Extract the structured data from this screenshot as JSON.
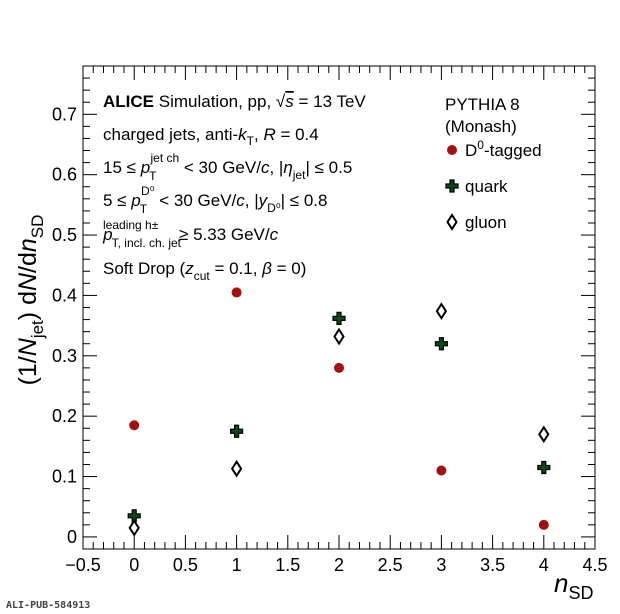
{
  "chart_data": {
    "type": "scatter",
    "x_range": [
      -0.5,
      4.5
    ],
    "y_range": [
      -0.02,
      0.78
    ],
    "x_ticks": [
      "−0.5",
      "0",
      "0.5",
      "1",
      "1.5",
      "2",
      "2.5",
      "3",
      "3.5",
      "4",
      "4.5"
    ],
    "y_ticks": [
      "0",
      "0.1",
      "0.2",
      "0.3",
      "0.4",
      "0.5",
      "0.6",
      "0.7"
    ],
    "x_tick_values": [
      -0.5,
      0,
      0.5,
      1,
      1.5,
      2,
      2.5,
      3,
      3.5,
      4,
      4.5
    ],
    "y_tick_values": [
      0,
      0.1,
      0.2,
      0.3,
      0.4,
      0.5,
      0.6,
      0.7
    ],
    "xlabel": {
      "main": "n",
      "sub": "SD"
    },
    "ylabel": {
      "a": "(1/",
      "n": "N",
      "jet": "jet",
      "b": ") d",
      "N": "N",
      "c": "/d",
      "n2": "n",
      "sd": "SD"
    },
    "series": [
      {
        "name": "D⁰-tagged",
        "marker": "circle",
        "color": "#a50f0f",
        "x": [
          0,
          1,
          2,
          3,
          4
        ],
        "y": [
          0.185,
          0.405,
          0.28,
          0.11,
          0.02
        ]
      },
      {
        "name": "quark",
        "marker": "cross",
        "color": "#0a4a14",
        "x": [
          0,
          1,
          2,
          3,
          4
        ],
        "y": [
          0.035,
          0.175,
          0.362,
          0.32,
          0.115
        ]
      },
      {
        "name": "gluon",
        "marker": "diamond",
        "color": "#000000",
        "x": [
          0,
          1,
          2,
          3,
          4
        ],
        "y": [
          0.015,
          0.113,
          0.332,
          0.374,
          0.17
        ]
      }
    ],
    "legend_header": {
      "line1": "PYTHIA 8",
      "line2": "(Monash)"
    },
    "annotations": {
      "alice": "ALICE",
      "l1": "Simulation, pp, √s = 13 TeV",
      "l2": "charged jets, anti-k_T, R = 0.4",
      "l3": "15 ≤ p_T^jet ch < 30 GeV/c, |η_jet| ≤ 0.5",
      "l4": "5 ≤ p_T^D⁰ < 30 GeV/c, |y_D⁰| ≤ 0.8",
      "l5": "p_T, incl. ch. jet^leading h± ≥ 5.33 GeV/c",
      "l6": "Soft Drop (z_cut = 0.1, β = 0)"
    },
    "footer": "ALI-PUB-584913",
    "grid": false
  }
}
